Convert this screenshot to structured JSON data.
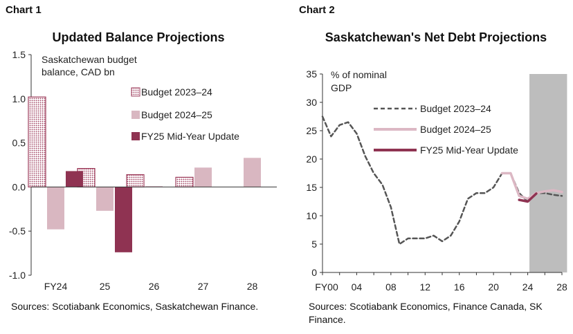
{
  "chart_data": [
    {
      "label": "Chart 1",
      "type": "bar",
      "title": "Updated Balance Projections",
      "ylabel": "Saskatchewan budget balance, CAD bn",
      "categories": [
        "FY24",
        "25",
        "26",
        "27",
        "28"
      ],
      "ylim": [
        -1.0,
        1.5
      ],
      "yticks": [
        "1.5",
        "1.0",
        "0.5",
        "0.0",
        "-0.5",
        "-1.0"
      ],
      "legend_position": "top-right",
      "series": [
        {
          "name": "Budget 2023–24",
          "values": [
            1.02,
            0.21,
            0.14,
            0.11,
            null
          ],
          "color": "#9e3d5c",
          "pattern": "dotted"
        },
        {
          "name": "Budget 2024–25",
          "values": [
            -0.48,
            -0.27,
            0.01,
            0.22,
            0.33
          ],
          "color": "#d9b7c1",
          "pattern": "solid"
        },
        {
          "name": "FY25 Mid-Year Update",
          "values": [
            0.18,
            -0.74,
            null,
            null,
            null
          ],
          "color": "#8f3352",
          "pattern": "solid"
        }
      ],
      "source": "Sources: Scotiabank Economics, Saskatchewan Finance."
    },
    {
      "label": "Chart 2",
      "type": "line",
      "title": "Saskatchewan's Net Debt Projections",
      "ylabel": "% of nominal GDP",
      "xlim": [
        2000,
        2028
      ],
      "ylim": [
        0,
        35
      ],
      "xticks": [
        {
          "value": 2000,
          "label": "FY00"
        },
        {
          "value": 2004,
          "label": "04"
        },
        {
          "value": 2008,
          "label": "08"
        },
        {
          "value": 2012,
          "label": "12"
        },
        {
          "value": 2016,
          "label": "16"
        },
        {
          "value": 2020,
          "label": "20"
        },
        {
          "value": 2024,
          "label": "24"
        },
        {
          "value": 2028,
          "label": "28"
        }
      ],
      "yticks": [
        "35",
        "30",
        "25",
        "20",
        "15",
        "10",
        "5",
        "0"
      ],
      "shaded_region": {
        "x": [
          2024.2,
          2028.6
        ],
        "color": "#bdbdbd"
      },
      "legend_position": "top-right",
      "series": [
        {
          "name": "Budget 2023–24",
          "style": "dashed",
          "color": "#555555",
          "x": [
            2000,
            2001,
            2002,
            2003,
            2004,
            2005,
            2006,
            2007,
            2008,
            2009,
            2010,
            2011,
            2012,
            2013,
            2014,
            2015,
            2016,
            2017,
            2018,
            2019,
            2020,
            2021,
            2022,
            2023,
            2024,
            2025,
            2026,
            2027,
            2028
          ],
          "y": [
            27.5,
            24.0,
            26.0,
            26.5,
            24.5,
            20.5,
            17.5,
            15.5,
            11.5,
            5.0,
            6.0,
            6.0,
            6.0,
            6.5,
            5.5,
            6.5,
            9.0,
            13.0,
            14.0,
            14.0,
            15.0,
            17.5,
            17.5,
            14.0,
            12.5,
            14.0,
            14.0,
            13.7,
            13.5
          ]
        },
        {
          "name": "Budget 2024–25",
          "style": "solid",
          "color": "#dcb8c4",
          "x": [
            2021,
            2022,
            2023,
            2024,
            2025,
            2026,
            2027,
            2028
          ],
          "y": [
            17.5,
            17.5,
            13.5,
            13.0,
            14.0,
            14.3,
            14.5,
            14.2
          ]
        },
        {
          "name": "FY25 Mid-Year Update",
          "style": "solid",
          "color": "#8f3352",
          "x": [
            2023,
            2024,
            2025
          ],
          "y": [
            12.8,
            12.5,
            13.9
          ]
        }
      ],
      "source": "Sources: Scotiabank Economics, Finance Canada, SK Finance."
    }
  ]
}
